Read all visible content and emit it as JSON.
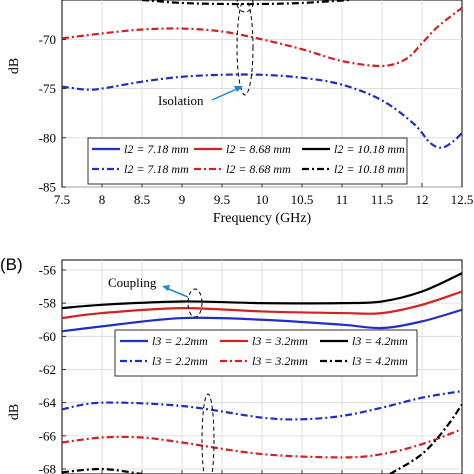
{
  "chart_data": [
    {
      "type": "line",
      "panel_label": "",
      "xlabel": "Frequency (GHz)",
      "ylabel": "dB",
      "xlim": [
        7.5,
        12.5
      ],
      "ylim": [
        -85,
        -66
      ],
      "x_ticks": [
        "7.5",
        "8",
        "8.5",
        "9",
        "9.5",
        "10",
        "10.5",
        "11",
        "11.5",
        "12",
        "12.5"
      ],
      "y_ticks": [
        "-85",
        "-80",
        "-75",
        "-70"
      ],
      "grid": true,
      "annotation": "Isolation",
      "legend_position": "bottom",
      "legend": [
        [
          "l2 = 7.18 mm",
          "l2 = 8.68 mm",
          "l2 = 10.18 mm"
        ],
        [
          "l2 = 7.18 mm",
          "l2 = 8.68 mm",
          "l2 = 10.18 mm"
        ]
      ],
      "series": [
        {
          "name": "l2 = 8.68 mm",
          "style": "dashdot",
          "color": "#d42020",
          "x": [
            7.5,
            8,
            8.5,
            9,
            9.5,
            10,
            10.5,
            11,
            11.5,
            11.8,
            12,
            12.2,
            12.5
          ],
          "y": [
            -69.9,
            -69.4,
            -69.0,
            -68.9,
            -69.2,
            -70.0,
            -71.0,
            -72.2,
            -72.7,
            -72.0,
            -70.4,
            -68.7,
            -66.8
          ]
        },
        {
          "name": "l2 = 7.18 mm",
          "style": "dashdot",
          "color": "#1f2ec7",
          "x": [
            7.5,
            7.8,
            8,
            8.5,
            9,
            9.5,
            10,
            10.5,
            11,
            11.5,
            11.9,
            12.1,
            12.25,
            12.4,
            12.5
          ],
          "y": [
            -74.8,
            -75.1,
            -75.0,
            -74.3,
            -73.8,
            -73.6,
            -73.6,
            -73.9,
            -74.6,
            -76.2,
            -78.6,
            -80.5,
            -81.0,
            -80.3,
            -79.5
          ]
        },
        {
          "name": "l2 = 10.18 mm",
          "style": "dashdot",
          "color": "#000000",
          "x": [
            8.5,
            9,
            9.5,
            10,
            10.5,
            11.1
          ],
          "y": [
            -66.0,
            -66.3,
            -66.4,
            -66.4,
            -66.3,
            -66.0
          ]
        }
      ]
    },
    {
      "type": "line",
      "panel_label": "(B)",
      "xlabel": "",
      "ylabel": "dB",
      "xlim": [
        7.5,
        12.5
      ],
      "ylim": [
        -68.3,
        -55.4
      ],
      "y_ticks": [
        "-56",
        "-58",
        "-60",
        "-62",
        "-64",
        "-66",
        "-68"
      ],
      "grid": true,
      "annotation": "Coupling",
      "legend_position": "middle",
      "legend": [
        [
          "l3 = 2.2mm",
          "l3 = 3.2mm",
          "l3 = 4.2mm"
        ],
        [
          "l3 = 2.2mm",
          "l3 = 3.2mm",
          "l3 = 4.2mm"
        ]
      ],
      "series": [
        {
          "name": "l3 = 4.2mm",
          "style": "solid",
          "color": "#000000",
          "x": [
            7.5,
            8,
            9,
            10,
            11,
            11.5,
            12,
            12.5
          ],
          "y": [
            -58.3,
            -58.1,
            -57.9,
            -58.0,
            -58.0,
            -57.9,
            -57.3,
            -56.2
          ]
        },
        {
          "name": "l3 = 3.2mm",
          "style": "solid",
          "color": "#d42020",
          "x": [
            7.5,
            8,
            9,
            10,
            11,
            11.5,
            12,
            12.5
          ],
          "y": [
            -58.9,
            -58.6,
            -58.3,
            -58.5,
            -58.6,
            -58.6,
            -58.1,
            -57.3
          ]
        },
        {
          "name": "l3 = 2.2mm",
          "style": "solid",
          "color": "#1f2ec7",
          "x": [
            7.5,
            8,
            9,
            10,
            11,
            11.5,
            12,
            12.5
          ],
          "y": [
            -59.7,
            -59.4,
            -58.9,
            -59.0,
            -59.3,
            -59.5,
            -59.1,
            -58.4
          ]
        },
        {
          "name": "l3 = 2.2mm",
          "style": "dashdot",
          "color": "#1f2ec7",
          "x": [
            7.5,
            8,
            9,
            10,
            10.5,
            11,
            11.5,
            12,
            12.5
          ],
          "y": [
            -64.4,
            -64.0,
            -64.2,
            -64.9,
            -65.0,
            -64.8,
            -64.3,
            -63.7,
            -63.3
          ]
        },
        {
          "name": "l3 = 3.2mm",
          "style": "dashdot",
          "color": "#d42020",
          "x": [
            7.5,
            8,
            8.5,
            9,
            10,
            11,
            11.5,
            12,
            12.5
          ],
          "y": [
            -66.4,
            -66.1,
            -66.1,
            -66.4,
            -67.1,
            -67.3,
            -67.1,
            -66.5,
            -65.6
          ]
        },
        {
          "name": "l3 = 4.2mm",
          "style": "dashdot",
          "color": "#000000",
          "x": [
            11.6,
            12,
            12.3,
            12.5
          ],
          "y": [
            -68.3,
            -67.1,
            -65.5,
            -64.1
          ]
        },
        {
          "name": "l3 = 4.2mm",
          "style": "dashdot",
          "color": "#000000",
          "x": [
            7.5,
            8.0,
            8.5
          ],
          "y": [
            -68.2,
            -68.0,
            -68.3
          ]
        }
      ]
    }
  ]
}
